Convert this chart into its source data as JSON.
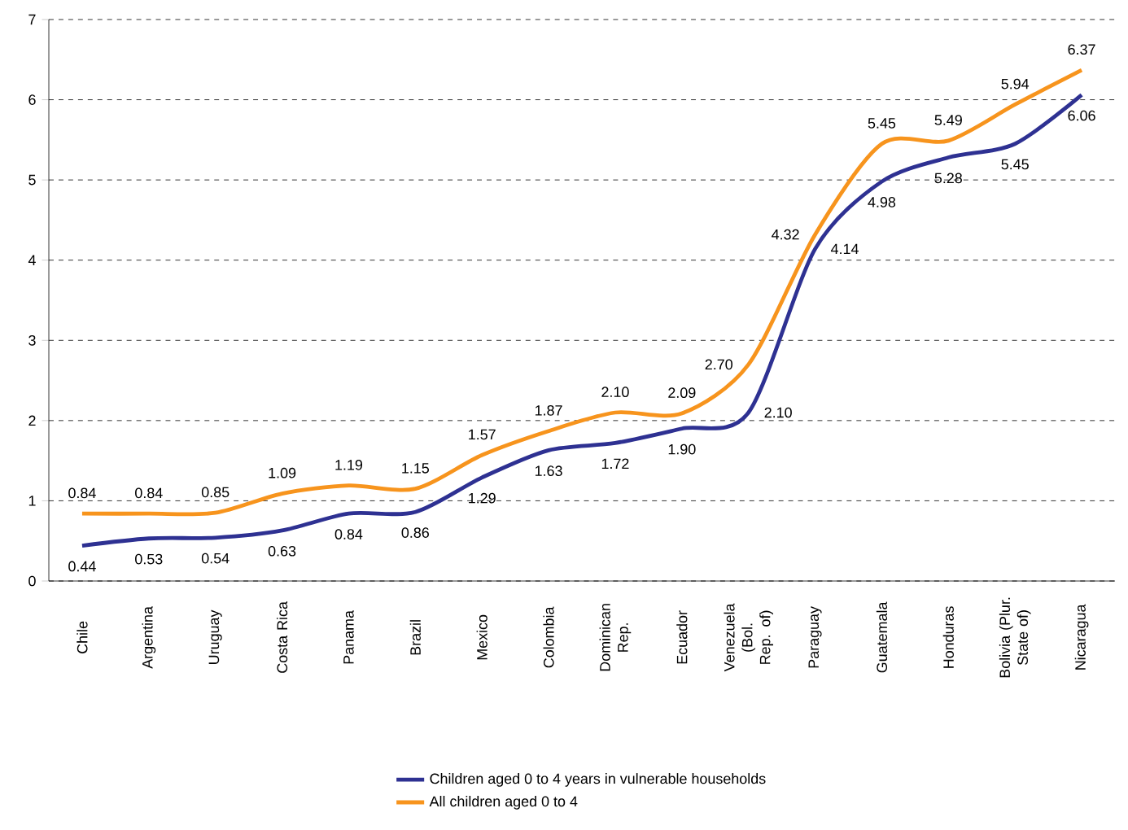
{
  "chart_data": {
    "type": "line",
    "categories": [
      "Chile",
      "Argentina",
      "Uruguay",
      "Costa Rica",
      "Panama",
      "Brazil",
      "Mexico",
      "Colombia",
      "Dominican Rep.",
      "Ecuador",
      "Venezuela (Bol. Rep. of)",
      "Paraguay",
      "Guatemala",
      "Honduras",
      "Bolivia (Plur. State of)",
      "Nicaragua"
    ],
    "series": [
      {
        "name": "Children aged 0  to 4 years in vulnerable households",
        "color": "#2e3192",
        "values": [
          0.44,
          0.53,
          0.54,
          0.63,
          0.84,
          0.86,
          1.29,
          1.63,
          1.72,
          1.9,
          2.1,
          4.14,
          4.98,
          5.28,
          5.45,
          6.06
        ],
        "value_labels": [
          "0.44",
          "0.53",
          "0.54",
          "0.63",
          "0.84",
          "0.86",
          "1.29",
          "1.63",
          "1.72",
          "1.90",
          "2.10",
          "4.14",
          "4.98",
          "5.28",
          "5.45",
          "6.06"
        ]
      },
      {
        "name": "All children aged 0  to 4",
        "color": "#f7941d",
        "values": [
          0.84,
          0.84,
          0.85,
          1.09,
          1.19,
          1.15,
          1.57,
          1.87,
          2.1,
          2.09,
          2.7,
          4.32,
          5.45,
          5.49,
          5.94,
          6.37
        ],
        "value_labels": [
          "0.84",
          "0.84",
          "0.85",
          "1.09",
          "1.19",
          "1.15",
          "1.57",
          "1.87",
          "2.10",
          "2.09",
          "2.70",
          "4.32",
          "5.45",
          "5.49",
          "5.94",
          "6.37"
        ]
      }
    ],
    "ylim": [
      0,
      7
    ],
    "yticks": [
      0,
      1,
      2,
      3,
      4,
      5,
      6,
      7
    ],
    "grid": "y",
    "legend": "bottom",
    "marker": "none",
    "line_style": "solid"
  }
}
